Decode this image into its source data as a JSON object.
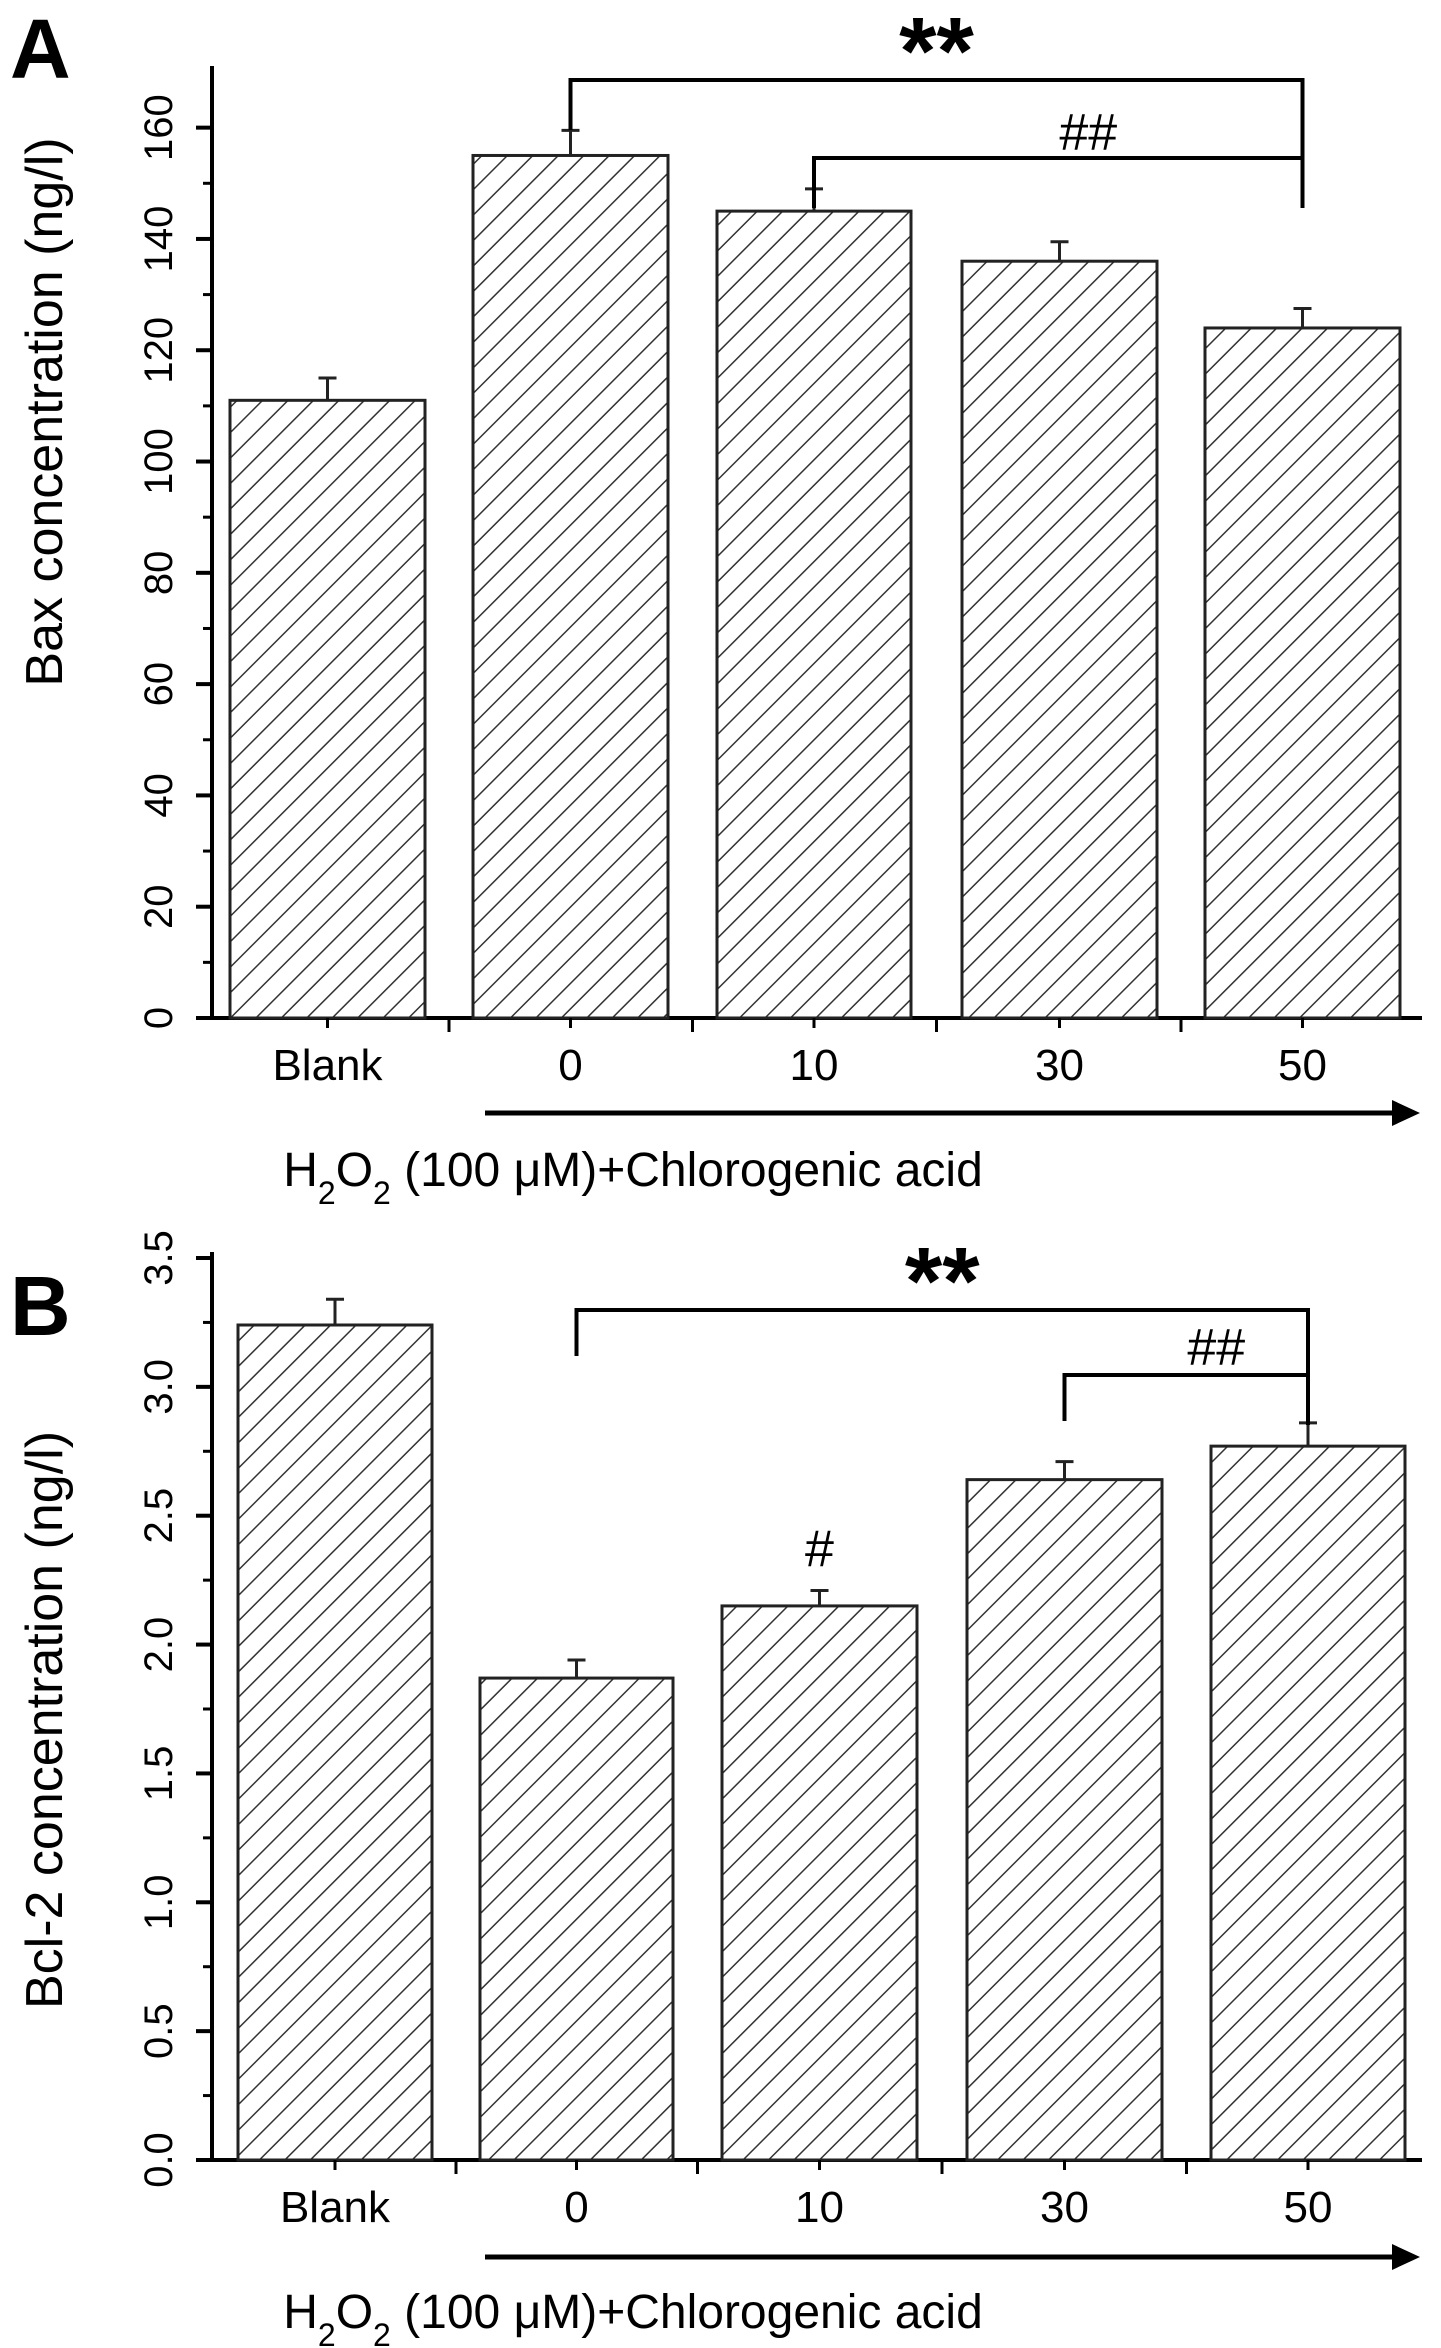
{
  "panels": [
    {
      "letter": "A",
      "bottom_label_main": "H",
      "bottom_label_sub1": "2",
      "bottom_label_mid": "O",
      "bottom_label_sub2": "2",
      "bottom_label_rest": " (100 μM)+Chlorogenic acid"
    },
    {
      "letter": "B",
      "bottom_label_main": "H",
      "bottom_label_sub1": "2",
      "bottom_label_mid": "O",
      "bottom_label_sub2": "2",
      "bottom_label_rest": " (100 μM)+Chlorogenic acid"
    }
  ],
  "chart_data": [
    {
      "type": "bar",
      "ylabel": "Bax concentration (ng/l)",
      "categories": [
        "Blank",
        "0",
        "10",
        "30",
        "50"
      ],
      "values": [
        111,
        155,
        145,
        136,
        124
      ],
      "errors": [
        4,
        4.5,
        4,
        3.5,
        3.5
      ],
      "ylim": [
        0,
        170
      ],
      "yticks": [
        0,
        20,
        40,
        60,
        80,
        100,
        120,
        140,
        160
      ],
      "yticklabels": [
        "0",
        "20",
        "40",
        "60",
        "80",
        "100",
        "120",
        "140",
        "160"
      ],
      "pattern": "diagonal hatch",
      "significance": [
        {
          "from": "0",
          "to": "50",
          "label": "**",
          "type": "bracket"
        },
        {
          "from": "10",
          "to": "50",
          "label": "##",
          "type": "bracket"
        }
      ]
    },
    {
      "type": "bar",
      "ylabel": "Bcl-2 concentration (ng/l)",
      "categories": [
        "Blank",
        "0",
        "10",
        "30",
        "50"
      ],
      "values": [
        3.24,
        1.87,
        2.15,
        2.64,
        2.77
      ],
      "errors": [
        0.1,
        0.07,
        0.06,
        0.07,
        0.09
      ],
      "ylim": [
        0,
        3.5
      ],
      "yticks": [
        0,
        0.5,
        1.0,
        1.5,
        2.0,
        2.5,
        3.0,
        3.5
      ],
      "yticklabels": [
        "0.0",
        "0.5",
        "1.0",
        "1.5",
        "2.0",
        "2.5",
        "3.0",
        "3.5"
      ],
      "pattern": "diagonal hatch",
      "significance": [
        {
          "from": "0",
          "to": "50",
          "label": "**",
          "type": "bracket"
        },
        {
          "from": "30",
          "to": "50",
          "label": "##",
          "type": "bracket"
        },
        {
          "at": "10",
          "label": "#",
          "type": "single"
        }
      ]
    }
  ]
}
